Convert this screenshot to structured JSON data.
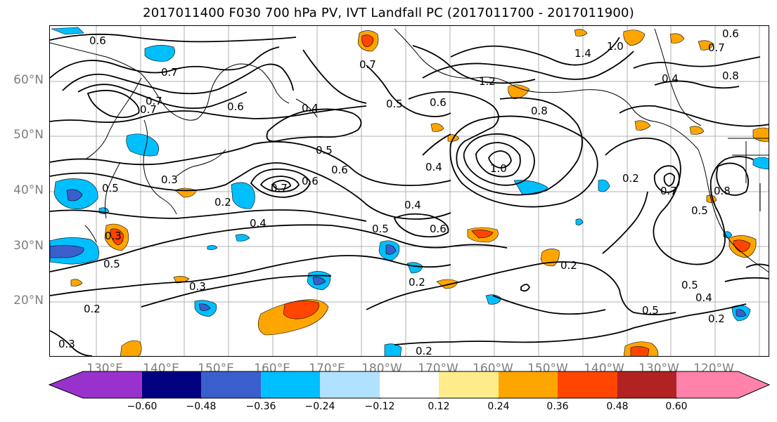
{
  "title": "2017011400 F030 700 hPa PV, IVT Landfall PC (2017011700 - 2017011900)",
  "map": {
    "lat_labels": [
      "60°N",
      "50°N",
      "40°N",
      "30°N",
      "20°N"
    ],
    "lon_labels": [
      "130°E",
      "140°E",
      "150°E",
      "160°E",
      "170°E",
      "180°W",
      "170°W",
      "160°W",
      "150°W",
      "140°W",
      "130°W",
      "120°W"
    ],
    "contour_labels": [
      "0.6",
      "0.7",
      "0.6",
      "0.5",
      "0.5",
      "0.4",
      "0.5",
      "0.6",
      "0.8",
      "0.5",
      "0.4",
      "0.3",
      "0.2",
      "0.3",
      "0.2",
      "0.2",
      "0.5",
      "0.4",
      "0.2",
      "0.7",
      "0.5",
      "0.4",
      "1.0",
      "0.6",
      "0.6",
      "0.7",
      "0.4",
      "0.3",
      "0.7",
      "0.8",
      "0.5",
      "0.6",
      "0.5",
      "0.2",
      "0.3",
      "0.2",
      "0.7",
      "0.7",
      "0.6",
      "1.4",
      "1.0",
      "1.2",
      "0.8",
      "0.4",
      "0.7",
      "0.2"
    ]
  },
  "colorbar": {
    "colors": [
      "#9932cc",
      "#000080",
      "#3a5fcd",
      "#00bfff",
      "#b0e2ff",
      "#ffffff",
      "#ffec8b",
      "#ffa500",
      "#ff4500",
      "#b22222",
      "#ff82ab"
    ],
    "tick_labels": [
      "−0.60",
      "−0.48",
      "−0.36",
      "−0.24",
      "−0.12",
      "0.12",
      "0.24",
      "0.36",
      "0.48",
      "0.60"
    ]
  }
}
